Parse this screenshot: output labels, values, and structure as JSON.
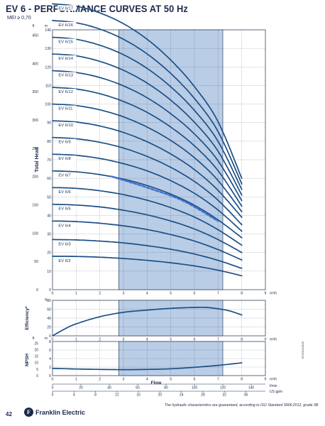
{
  "page": {
    "title": "EV 6 - PERFORMANCE CURVES AT 50 Hz",
    "subtitle": "MEI ≥ 0,70",
    "page_number": "42",
    "brand": "Franklin Electric",
    "brand_mark": "F",
    "footnote": "The hydraulic characteristics are guaranteed, according to ISO Standard 9906:2012, grade 3B",
    "code": "EV2021U500"
  },
  "colors": {
    "curve": "#1c4f86",
    "band": "#b9cde6",
    "grid": "#1b2a4a",
    "best_efficiency_line": "#3f6fcf"
  },
  "chart_data": [
    {
      "type": "line",
      "ylabel": "Total Head",
      "y_units": [
        "ft",
        "m"
      ],
      "ylim_m": [
        0,
        140
      ],
      "yticks_m": [
        0,
        10,
        20,
        30,
        40,
        50,
        60,
        70,
        80,
        90,
        100,
        110,
        120,
        130,
        140
      ],
      "ylim_ft": [
        0,
        450
      ],
      "yticks_ft": [
        0,
        50,
        100,
        150,
        200,
        250,
        300,
        350,
        400,
        450
      ],
      "x_unit": "m³/h",
      "xlim": [
        0,
        9
      ],
      "xticks": [
        0,
        1,
        2,
        3,
        4,
        5,
        6,
        7,
        8,
        9
      ],
      "operating_range": [
        2.8,
        7.2
      ],
      "series": [
        {
          "name": "EV 6/2",
          "x": [
            0,
            1,
            2,
            3,
            4,
            5,
            6,
            7,
            8
          ],
          "y": [
            18,
            17.9,
            17.5,
            16.8,
            15.8,
            14.5,
            12.8,
            10.5,
            7.5
          ]
        },
        {
          "name": "EV 6/3",
          "x": [
            0,
            1,
            2,
            3,
            4,
            5,
            6,
            7,
            8
          ],
          "y": [
            27,
            26.8,
            26.2,
            25.2,
            23.7,
            21.8,
            19.2,
            15.8,
            11.5
          ]
        },
        {
          "name": "EV 6/4",
          "x": [
            0,
            1,
            2,
            3,
            4,
            5,
            6,
            7,
            8
          ],
          "y": [
            37,
            36.7,
            35.8,
            34.4,
            32.4,
            29.7,
            26.2,
            21.6,
            16
          ]
        },
        {
          "name": "EV 6/5",
          "x": [
            0,
            1,
            2,
            3,
            4,
            5,
            6,
            7,
            8
          ],
          "y": [
            46,
            45.6,
            44.6,
            42.8,
            40.3,
            37,
            32.7,
            27,
            20
          ]
        },
        {
          "name": "EV 6/6",
          "x": [
            0,
            1,
            2,
            3,
            4,
            5,
            6,
            7,
            8
          ],
          "y": [
            55,
            54.6,
            53.3,
            51.2,
            48.2,
            44.2,
            39.1,
            32.3,
            24
          ]
        },
        {
          "name": "EV 6/7",
          "x": [
            0,
            1,
            2,
            3,
            4,
            5,
            6,
            7,
            8
          ],
          "y": [
            64,
            63.5,
            62,
            59.6,
            56.1,
            51.5,
            45.5,
            37.6,
            28
          ]
        },
        {
          "name": "EV 6/8",
          "x": [
            0,
            1,
            2,
            3,
            4,
            5,
            6,
            7,
            8
          ],
          "y": [
            73,
            72.4,
            70.7,
            67.9,
            64,
            58.7,
            51.9,
            42.9,
            31.5
          ]
        },
        {
          "name": "EV 6/9",
          "x": [
            0,
            1,
            2,
            3,
            4,
            5,
            6,
            7,
            8
          ],
          "y": [
            82,
            81.3,
            79.4,
            76.3,
            71.8,
            65.9,
            58.3,
            48.2,
            35
          ]
        },
        {
          "name": "EV 6/10",
          "x": [
            0,
            1,
            2,
            3,
            4,
            5,
            6,
            7,
            8
          ],
          "y": [
            91,
            90.3,
            88.2,
            84.7,
            79.7,
            73.1,
            64.7,
            53.5,
            39
          ]
        },
        {
          "name": "EV 6/11",
          "x": [
            0,
            1,
            2,
            3,
            4,
            5,
            6,
            7,
            8
          ],
          "y": [
            100,
            99.2,
            96.9,
            93.1,
            87.6,
            80.4,
            71.1,
            58.8,
            42
          ]
        },
        {
          "name": "EV 6/12",
          "x": [
            0,
            1,
            2,
            3,
            4,
            5,
            6,
            7,
            8
          ],
          "y": [
            109,
            108.1,
            105.6,
            101.4,
            95.5,
            87.6,
            77.5,
            64.1,
            45
          ]
        },
        {
          "name": "EV 6/13",
          "x": [
            0,
            1,
            2,
            3,
            4,
            5,
            6,
            7,
            8
          ],
          "y": [
            118,
            117,
            114.3,
            109.8,
            103.4,
            94.8,
            83.9,
            69.4,
            48
          ]
        },
        {
          "name": "EV 6/14",
          "x": [
            0,
            1,
            2,
            3,
            4,
            5,
            6,
            7,
            8
          ],
          "y": [
            127,
            126,
            123,
            118.2,
            111.3,
            102.1,
            90.2,
            74.6,
            51
          ]
        },
        {
          "name": "EV 6/15",
          "x": [
            0,
            1,
            2,
            3,
            4,
            5,
            6,
            7,
            8
          ],
          "y": [
            136,
            134.9,
            131.7,
            126.6,
            119.2,
            109.3,
            96.6,
            79.9,
            54
          ]
        },
        {
          "name": "EV 6/16",
          "x": [
            0,
            1,
            2,
            3,
            4,
            5,
            6,
            7,
            8
          ],
          "y": [
            145,
            143.8,
            140.4,
            134.9,
            127,
            116.5,
            103,
            85.2,
            57
          ]
        },
        {
          "name": "EV 6/17",
          "x": [
            0,
            1,
            2,
            3,
            4,
            5,
            6,
            7,
            8
          ],
          "y": [
            154,
            152.7,
            149.1,
            143.3,
            134.9,
            123.7,
            109.4,
            90.5,
            60
          ]
        }
      ],
      "best_efficiency_line": {
        "x": [
          2.5,
          4,
          5.5,
          7
        ],
        "y": [
          61,
          55,
          48,
          37
        ]
      }
    },
    {
      "type": "line",
      "ylabel": "Efficiency*",
      "y_unit": "%",
      "ylim": [
        0,
        80
      ],
      "yticks": [
        0,
        20,
        40,
        60,
        80
      ],
      "x_unit": "m³/h",
      "xlim": [
        0,
        9
      ],
      "xticks": [
        0,
        1,
        2,
        3,
        4,
        5,
        6,
        7,
        8,
        9
      ],
      "operating_range": [
        2.8,
        7.2
      ],
      "series": [
        {
          "x": [
            0,
            0.5,
            1,
            2,
            3,
            4,
            5,
            6,
            6.5,
            7,
            7.5,
            8
          ],
          "y": [
            0,
            15,
            27,
            43,
            53,
            58,
            62,
            64,
            64,
            61,
            56,
            47
          ]
        }
      ]
    },
    {
      "type": "line",
      "ylabel": "NPSH",
      "y_units": [
        "ft",
        "m"
      ],
      "ylim_m": [
        0,
        8
      ],
      "yticks_m": [
        0,
        2,
        4,
        6,
        8
      ],
      "ylim_ft": [
        0,
        25
      ],
      "yticks_ft": [
        0,
        5,
        10,
        15,
        20,
        25
      ],
      "xlabel": "Flow",
      "x_units": [
        "m³/h",
        "l/min",
        "US gpm"
      ],
      "xlim": [
        0,
        9
      ],
      "xticks": [
        0,
        1,
        2,
        3,
        4,
        5,
        6,
        7,
        8,
        9
      ],
      "xticks_lmin": [
        0,
        20,
        40,
        60,
        80,
        100,
        120,
        140
      ],
      "xticks_usgpm": [
        0,
        4,
        8,
        12,
        16,
        20,
        24,
        28,
        32,
        36
      ],
      "operating_range": [
        2.8,
        7.2
      ],
      "series": [
        {
          "x": [
            0,
            1,
            2,
            3,
            4,
            5,
            6,
            7,
            8
          ],
          "y": [
            1.7,
            1.55,
            1.45,
            1.4,
            1.45,
            1.6,
            1.95,
            2.4,
            3.0
          ]
        }
      ]
    }
  ]
}
